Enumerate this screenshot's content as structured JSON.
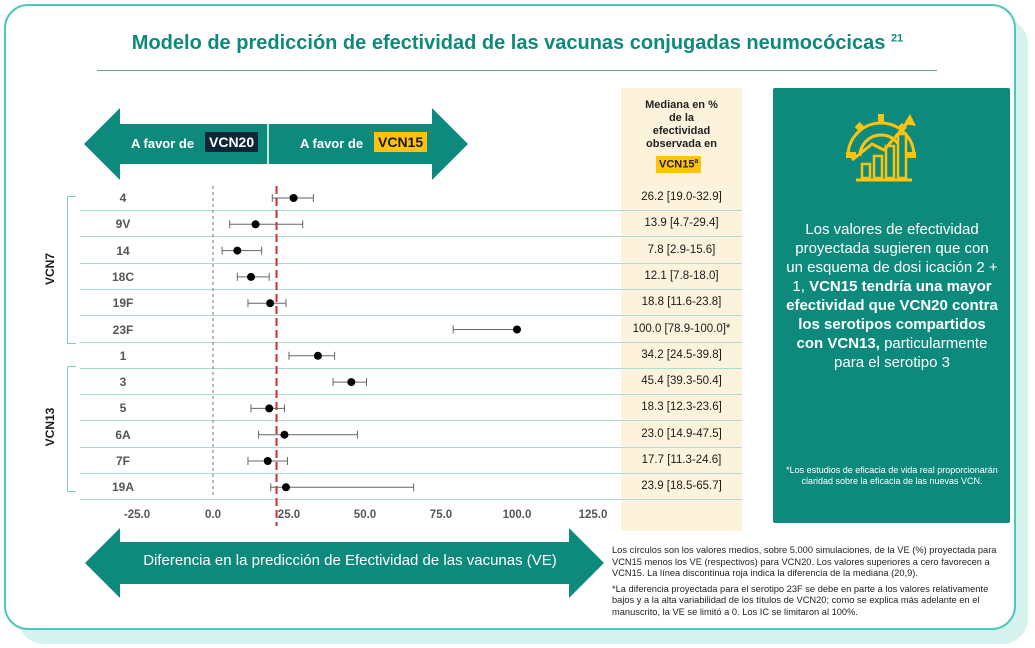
{
  "title": "Modelo de predicción de efectividad de las vacunas conjugadas neumocócicas",
  "title_ref": "21",
  "arrow_top": {
    "left_label": "A favor de",
    "left_tag": "VCN20",
    "right_label": "A favor de",
    "right_tag": "VCN15"
  },
  "arrow_bottom_label": "Diferencia en la predicción de Efectividad de las vacunas (VE)",
  "median_header": "Mediana en % de la efectividad observada en",
  "median_tag": "VCN15",
  "median_tag_sup": "a",
  "groups": {
    "vcn7": "VCN7",
    "vcn13": "VCN13"
  },
  "colors": {
    "teal": "#0e8a7c",
    "yellow": "#ffc20e",
    "navy": "#0c2637",
    "red_line": "#d62b2b"
  },
  "chart_data": {
    "type": "scatter",
    "title": "Diferencia en la predicción de Efectividad de las vacunas (VE)",
    "xlim": [
      -25,
      125
    ],
    "x_ticks": [
      "-25.0",
      "0.0",
      "25.0",
      "50.0",
      "75.0",
      "100.0",
      "125.0"
    ],
    "x_tick_values": [
      -25,
      0,
      25,
      50,
      75,
      100,
      125
    ],
    "reference_line_zero": 0,
    "median_difference": 20.9,
    "categories": [
      "4",
      "9V",
      "14",
      "18C",
      "19F",
      "23F",
      "1",
      "3",
      "5",
      "6A",
      "7F",
      "19A"
    ],
    "group_of": [
      "VCN7",
      "VCN7",
      "VCN7",
      "VCN7",
      "VCN7",
      "VCN7",
      "VCN13",
      "VCN13",
      "VCN13",
      "VCN13",
      "VCN13",
      "VCN13"
    ],
    "points": [
      {
        "serotype": "4",
        "mean": 26.5,
        "low": 19.5,
        "high": 33.0,
        "median_text": "26.2 [19.0-32.9]"
      },
      {
        "serotype": "9V",
        "mean": 14.0,
        "low": 5.5,
        "high": 29.5,
        "median_text": "13.9 [4.7-29.4]"
      },
      {
        "serotype": "14",
        "mean": 8.0,
        "low": 3.0,
        "high": 16.0,
        "median_text": "7.8 [2.9-15.6]"
      },
      {
        "serotype": "18C",
        "mean": 12.5,
        "low": 8.0,
        "high": 18.5,
        "median_text": "12.1 [7.8-18.0]"
      },
      {
        "serotype": "19F",
        "mean": 18.8,
        "low": 11.5,
        "high": 24.0,
        "median_text": "18.8 [11.6-23.8]"
      },
      {
        "serotype": "23F",
        "mean": 100.0,
        "low": 79.0,
        "high": 100.0,
        "median_text": "100.0 [78.9-100.0]*"
      },
      {
        "serotype": "1",
        "mean": 34.5,
        "low": 25.0,
        "high": 40.0,
        "median_text": "34.2 [24.5-39.8]"
      },
      {
        "serotype": "3",
        "mean": 45.5,
        "low": 39.5,
        "high": 50.5,
        "median_text": "45.4 [39.3-50.4]"
      },
      {
        "serotype": "5",
        "mean": 18.5,
        "low": 12.5,
        "high": 23.5,
        "median_text": "18.3 [12.3-23.6]"
      },
      {
        "serotype": "6A",
        "mean": 23.5,
        "low": 15.0,
        "high": 47.5,
        "median_text": "23.0 [14.9-47.5]"
      },
      {
        "serotype": "7F",
        "mean": 18.0,
        "low": 11.5,
        "high": 24.5,
        "median_text": "17.7 [11.3-24.6]"
      },
      {
        "serotype": "19A",
        "mean": 24.0,
        "low": 19.0,
        "high": 66.0,
        "median_text": "23.9 [18.5-65.7]"
      }
    ]
  },
  "side_panel": {
    "text_normal_1": "Los valores de efectividad proyectada sugieren que con un esquema de dosi icación 2 + 1,",
    "text_bold": "VCN15 tendría una mayor efectividad que VCN20 contra los serotipos compartidos con VCN13,",
    "text_normal_2": "particularmente para el serotipo 3",
    "note": "*Los estudios de eficacia de vida real proporcionarán claridad sobre la eficacia de las nuevas VCN.",
    "icon": "growth-chart-gear-icon"
  },
  "footnote_1": "Los círculos son los valores medios, sobre 5.000 simulaciones, de la VE (%) proyectada para VCN15 menos los VE (respectivos) para VCN20. Los valores superiores a cero favorecen a VCN15. La línea discontinua roja indica la diferencia de la mediana (20,9).",
  "footnote_2": "*La diferencia proyectada para el serotipo 23F se debe en parte a los valores relativamente bajos y a la alta variabilidad de los títulos de VCN20; como se explica más adelante en el manuscrito, la VE se limitó a 0. Los IC se limitaron al 100%."
}
